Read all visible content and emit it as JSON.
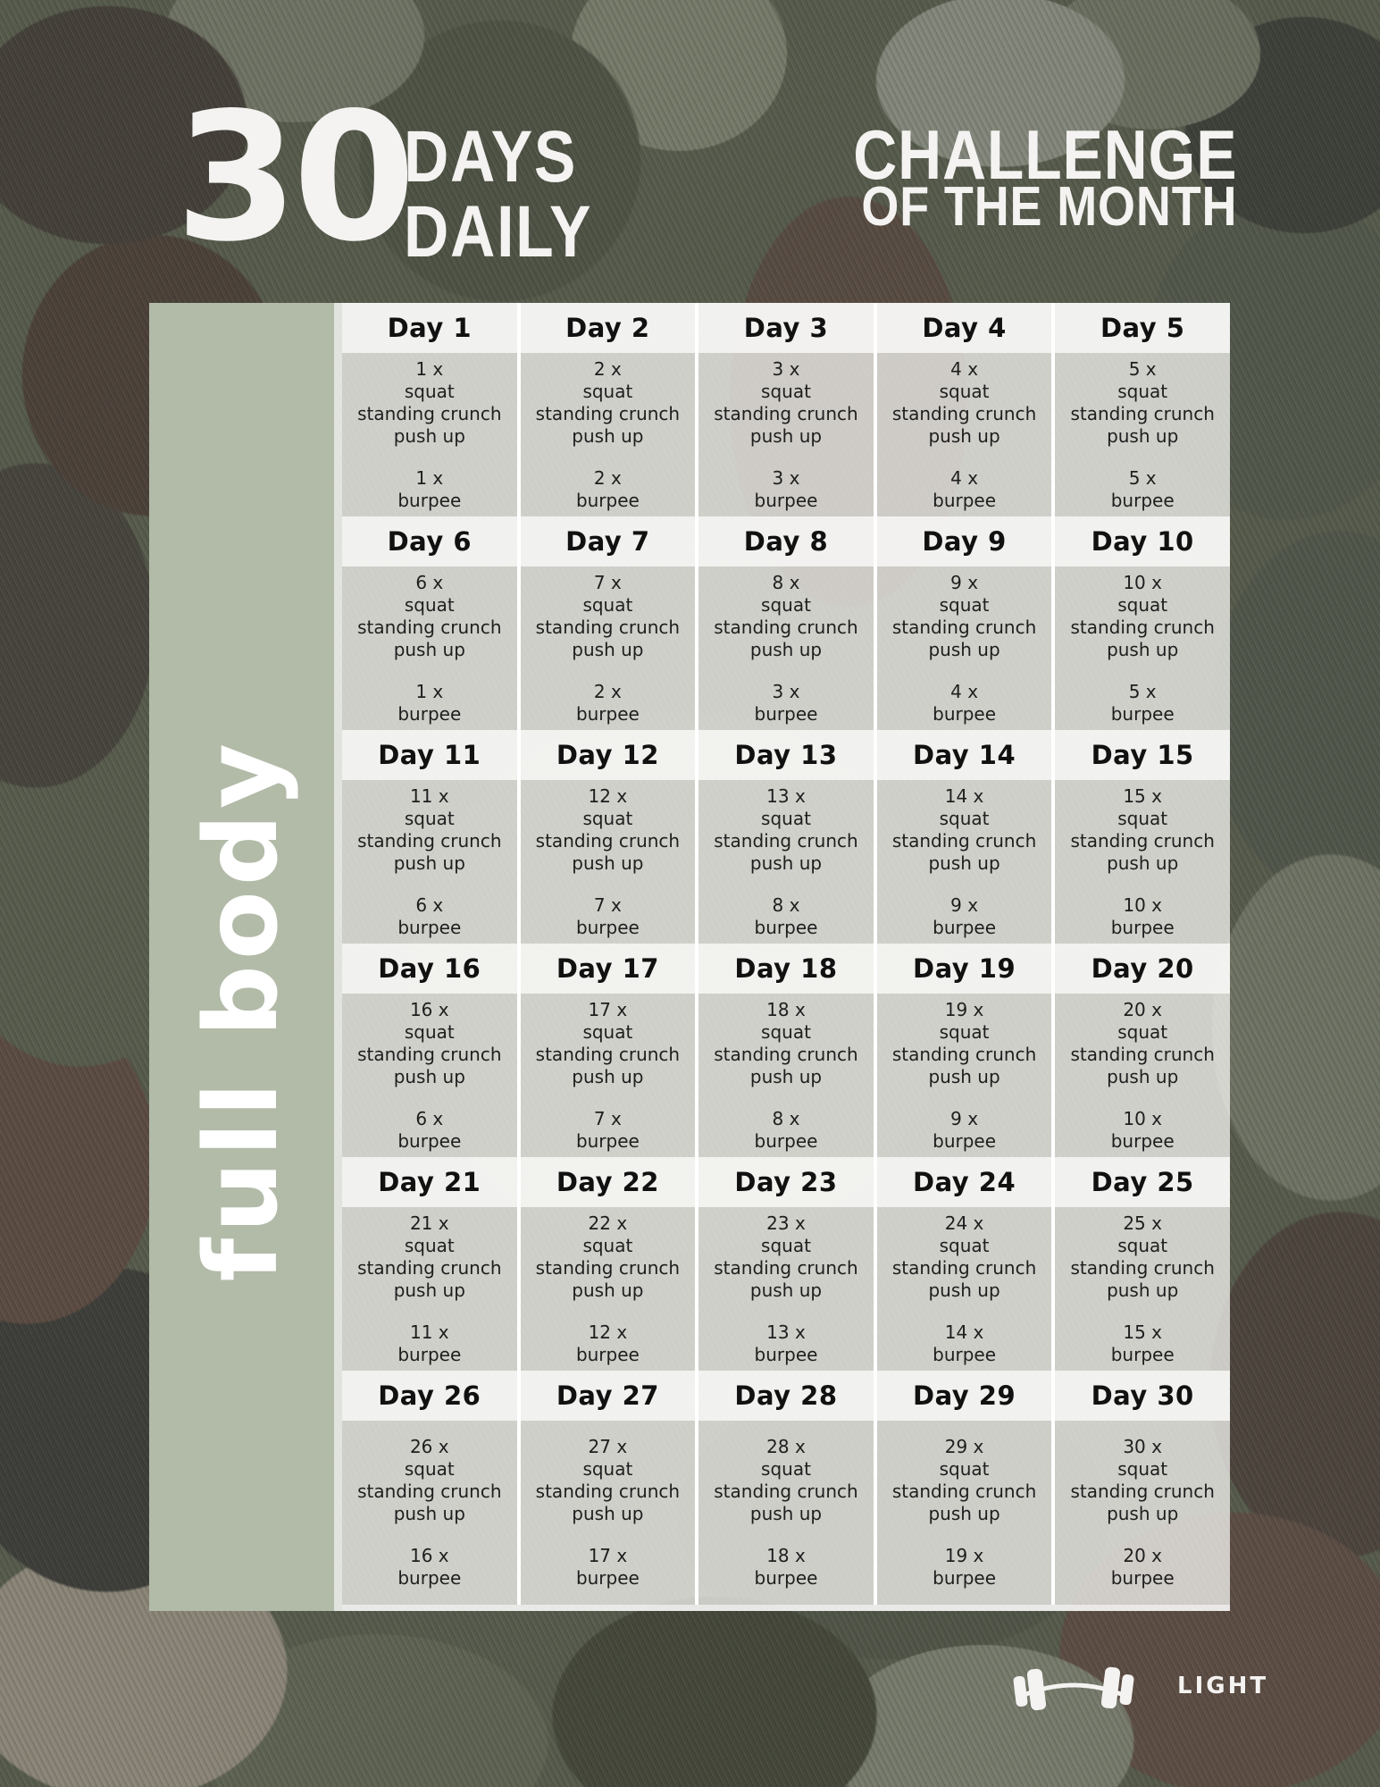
{
  "header": {
    "number": "30",
    "subtitle_line1": "DAYS",
    "subtitle_line2": "DAILY",
    "right_title_line1": "CHALLENGE",
    "right_title_line2": "OF THE MONTH"
  },
  "sidebar": {
    "label": "full body"
  },
  "footer": {
    "intensity_label": "LIGHT",
    "icon": "dumbbell-icon"
  },
  "colors": {
    "sidebar_green": "#b2bba8",
    "header_band": "#f6f6f4",
    "headline_text": "#f4f3f1",
    "cell_text": "#1e1e1e"
  },
  "grid": {
    "columns_per_row": 5,
    "days": [
      {
        "label": "Day 1",
        "squat_count": "1 x",
        "exercises": [
          "squat",
          "standing crunch",
          "push up"
        ],
        "burpee_count": "1 x",
        "burpee_label": "burpee"
      },
      {
        "label": "Day 2",
        "squat_count": "2 x",
        "exercises": [
          "squat",
          "standing crunch",
          "push up"
        ],
        "burpee_count": "2 x",
        "burpee_label": "burpee"
      },
      {
        "label": "Day 3",
        "squat_count": "3 x",
        "exercises": [
          "squat",
          "standing crunch",
          "push up"
        ],
        "burpee_count": "3 x",
        "burpee_label": "burpee"
      },
      {
        "label": "Day 4",
        "squat_count": "4 x",
        "exercises": [
          "squat",
          "standing crunch",
          "push up"
        ],
        "burpee_count": "4 x",
        "burpee_label": "burpee"
      },
      {
        "label": "Day 5",
        "squat_count": "5 x",
        "exercises": [
          "squat",
          "standing crunch",
          "push up"
        ],
        "burpee_count": "5 x",
        "burpee_label": "burpee"
      },
      {
        "label": "Day 6",
        "squat_count": "6 x",
        "exercises": [
          "squat",
          "standing crunch",
          "push up"
        ],
        "burpee_count": "1 x",
        "burpee_label": "burpee"
      },
      {
        "label": "Day 7",
        "squat_count": "7 x",
        "exercises": [
          "squat",
          "standing crunch",
          "push up"
        ],
        "burpee_count": "2 x",
        "burpee_label": "burpee"
      },
      {
        "label": "Day 8",
        "squat_count": "8 x",
        "exercises": [
          "squat",
          "standing crunch",
          "push up"
        ],
        "burpee_count": "3 x",
        "burpee_label": "burpee"
      },
      {
        "label": "Day 9",
        "squat_count": "9 x",
        "exercises": [
          "squat",
          "standing crunch",
          "push up"
        ],
        "burpee_count": "4 x",
        "burpee_label": "burpee"
      },
      {
        "label": "Day 10",
        "squat_count": "10 x",
        "exercises": [
          "squat",
          "standing crunch",
          "push up"
        ],
        "burpee_count": "5 x",
        "burpee_label": "burpee"
      },
      {
        "label": "Day 11",
        "squat_count": "11 x",
        "exercises": [
          "squat",
          "standing crunch",
          "push up"
        ],
        "burpee_count": "6 x",
        "burpee_label": "burpee"
      },
      {
        "label": "Day 12",
        "squat_count": "12 x",
        "exercises": [
          "squat",
          "standing crunch",
          "push up"
        ],
        "burpee_count": "7 x",
        "burpee_label": "burpee"
      },
      {
        "label": "Day 13",
        "squat_count": "13 x",
        "exercises": [
          "squat",
          "standing crunch",
          "push up"
        ],
        "burpee_count": "8 x",
        "burpee_label": "burpee"
      },
      {
        "label": "Day 14",
        "squat_count": "14 x",
        "exercises": [
          "squat",
          "standing crunch",
          "push up"
        ],
        "burpee_count": "9 x",
        "burpee_label": "burpee"
      },
      {
        "label": "Day 15",
        "squat_count": "15 x",
        "exercises": [
          "squat",
          "standing crunch",
          "push up"
        ],
        "burpee_count": "10 x",
        "burpee_label": "burpee"
      },
      {
        "label": "Day 16",
        "squat_count": "16 x",
        "exercises": [
          "squat",
          "standing crunch",
          "push up"
        ],
        "burpee_count": "6 x",
        "burpee_label": "burpee"
      },
      {
        "label": "Day 17",
        "squat_count": "17 x",
        "exercises": [
          "squat",
          "standing crunch",
          "push up"
        ],
        "burpee_count": "7 x",
        "burpee_label": "burpee"
      },
      {
        "label": "Day 18",
        "squat_count": "18 x",
        "exercises": [
          "squat",
          "standing crunch",
          "push up"
        ],
        "burpee_count": "8 x",
        "burpee_label": "burpee"
      },
      {
        "label": "Day 19",
        "squat_count": "19 x",
        "exercises": [
          "squat",
          "standing crunch",
          "push up"
        ],
        "burpee_count": "9 x",
        "burpee_label": "burpee"
      },
      {
        "label": "Day 20",
        "squat_count": "20 x",
        "exercises": [
          "squat",
          "standing crunch",
          "push up"
        ],
        "burpee_count": "10 x",
        "burpee_label": "burpee"
      },
      {
        "label": "Day 21",
        "squat_count": "21 x",
        "exercises": [
          "squat",
          "standing crunch",
          "push up"
        ],
        "burpee_count": "11 x",
        "burpee_label": "burpee"
      },
      {
        "label": "Day 22",
        "squat_count": "22 x",
        "exercises": [
          "squat",
          "standing crunch",
          "push up"
        ],
        "burpee_count": "12 x",
        "burpee_label": "burpee"
      },
      {
        "label": "Day 23",
        "squat_count": "23 x",
        "exercises": [
          "squat",
          "standing crunch",
          "push up"
        ],
        "burpee_count": "13 x",
        "burpee_label": "burpee"
      },
      {
        "label": "Day 24",
        "squat_count": "24 x",
        "exercises": [
          "squat",
          "standing crunch",
          "push up"
        ],
        "burpee_count": "14 x",
        "burpee_label": "burpee"
      },
      {
        "label": "Day 25",
        "squat_count": "25 x",
        "exercises": [
          "squat",
          "standing crunch",
          "push up"
        ],
        "burpee_count": "15 x",
        "burpee_label": "burpee"
      },
      {
        "label": "Day 26",
        "squat_count": "26 x",
        "exercises": [
          "squat",
          "standing crunch",
          "push up"
        ],
        "burpee_count": "16 x",
        "burpee_label": "burpee"
      },
      {
        "label": "Day 27",
        "squat_count": "27 x",
        "exercises": [
          "squat",
          "standing crunch",
          "push up"
        ],
        "burpee_count": "17 x",
        "burpee_label": "burpee"
      },
      {
        "label": "Day 28",
        "squat_count": "28 x",
        "exercises": [
          "squat",
          "standing crunch",
          "push up"
        ],
        "burpee_count": "18 x",
        "burpee_label": "burpee"
      },
      {
        "label": "Day 29",
        "squat_count": "29 x",
        "exercises": [
          "squat",
          "standing crunch",
          "push up"
        ],
        "burpee_count": "19 x",
        "burpee_label": "burpee"
      },
      {
        "label": "Day 30",
        "squat_count": "30 x",
        "exercises": [
          "squat",
          "standing crunch",
          "push up"
        ],
        "burpee_count": "20 x",
        "burpee_label": "burpee"
      }
    ]
  }
}
